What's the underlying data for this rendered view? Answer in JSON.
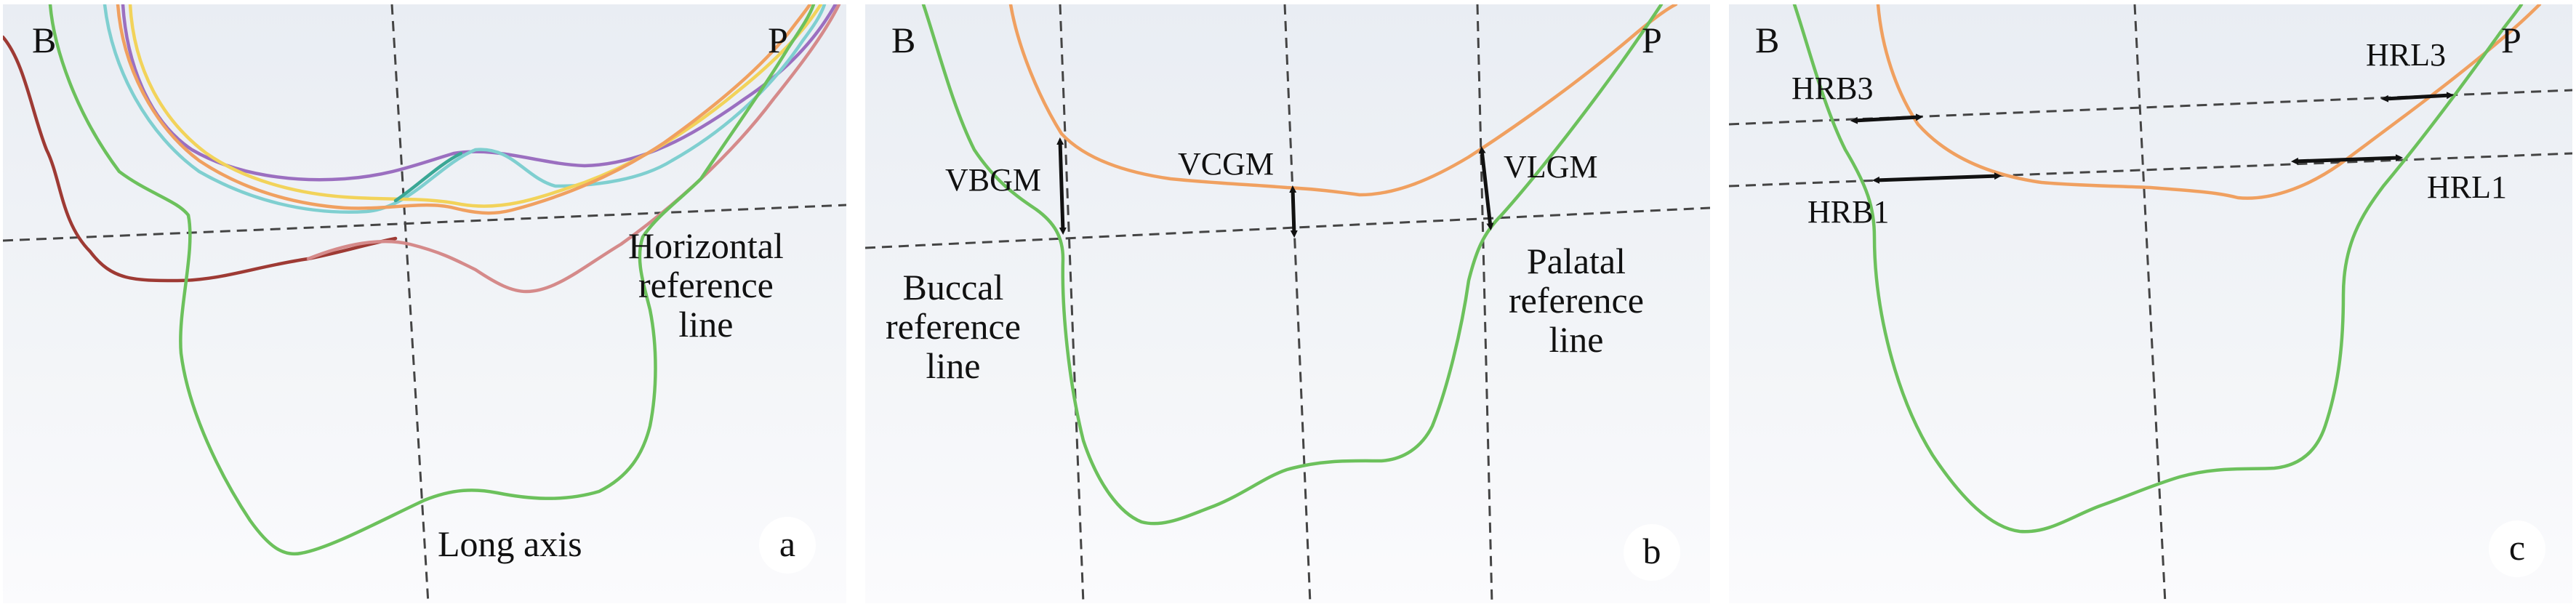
{
  "panels": [
    {
      "badge": "a",
      "labels": {
        "buccal": "B",
        "palatal": "P",
        "horizontal_reference_line": "Horizontal\nreference\nline",
        "long_axis": "Long axis"
      }
    },
    {
      "badge": "b",
      "labels": {
        "buccal": "B",
        "palatal": "P",
        "vbgm": "VBGM",
        "vcgm": "VCGM",
        "vlgm": "VLGM",
        "buccal_reference_line": "Buccal\nreference\nline",
        "palatal_reference_line": "Palatal\nreference\nline"
      }
    },
    {
      "badge": "c",
      "labels": {
        "buccal": "B",
        "palatal": "P",
        "hrb3": "HRB3",
        "hrb1": "HRB1",
        "hrl3": "HRL3",
        "hrl1": "HRL1"
      }
    }
  ],
  "colors": {
    "bone": "#6cc15c",
    "gingiva": "#f0a060",
    "dark_red": "#9e3a34",
    "pink": "#d58a8a",
    "purple": "#9b6fc0",
    "yellow": "#f2d35a",
    "cyan": "#7fcfd0",
    "teal": "#3aa795"
  }
}
